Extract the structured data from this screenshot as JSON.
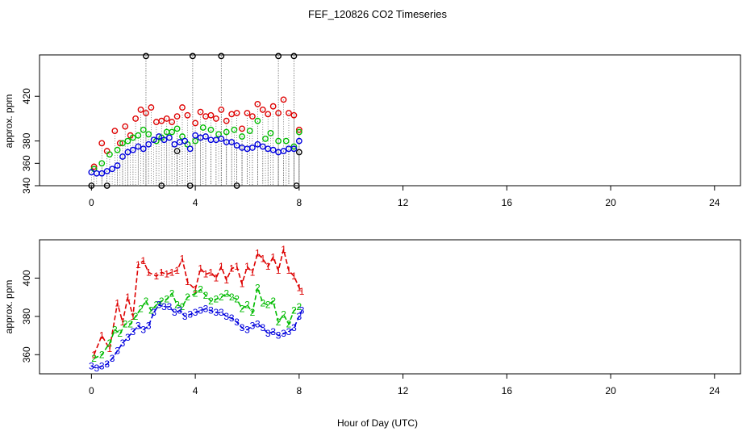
{
  "title": "FEF_120826  CO2 Timeseries",
  "xlabel": "Hour of Day (UTC)",
  "chart_data": [
    {
      "type": "scatter",
      "ylabel": "approx. ppm",
      "xlim": [
        -2,
        25
      ],
      "ylim": [
        340,
        457
      ],
      "xticks": [
        "0",
        "4",
        "8",
        "12",
        "16",
        "20",
        "24"
      ],
      "yticks": [
        "340",
        "360",
        "380",
        "420"
      ],
      "grid": false,
      "series": [
        {
          "color": "#000000",
          "x": [
            0.0,
            0.6,
            2.1,
            2.7,
            3.3,
            3.8,
            3.9,
            5.0,
            5.6,
            7.2,
            7.8,
            7.9,
            8.0
          ],
          "y": [
            340,
            340,
            456,
            340,
            371,
            340,
            456,
            456,
            340,
            456,
            456,
            340,
            370
          ]
        },
        {
          "color": "#DD0000",
          "x": [
            0.1,
            0.4,
            0.6,
            0.9,
            1.1,
            1.3,
            1.5,
            1.7,
            1.9,
            2.1,
            2.3,
            2.5,
            2.7,
            2.9,
            3.1,
            3.3,
            3.5,
            3.7,
            4.0,
            4.2,
            4.4,
            4.6,
            4.8,
            5.0,
            5.2,
            5.4,
            5.6,
            5.8,
            6.0,
            6.2,
            6.4,
            6.6,
            6.8,
            7.0,
            7.2,
            7.4,
            7.6,
            7.8,
            8.0
          ],
          "y": [
            357,
            378,
            371,
            389,
            378,
            393,
            385,
            400,
            408,
            405,
            410,
            397,
            398,
            400,
            397,
            402,
            410,
            403,
            396,
            406,
            402,
            403,
            400,
            408,
            398,
            404,
            405,
            391,
            405,
            402,
            413,
            408,
            404,
            411,
            405,
            417,
            405,
            403,
            390
          ]
        },
        {
          "color": "#00BB00",
          "x": [
            0.1,
            0.4,
            0.7,
            1.0,
            1.2,
            1.4,
            1.6,
            1.8,
            2.0,
            2.2,
            2.5,
            2.7,
            2.9,
            3.1,
            3.3,
            3.5,
            3.7,
            4.0,
            4.3,
            4.6,
            4.9,
            5.2,
            5.5,
            5.8,
            6.1,
            6.4,
            6.7,
            6.9,
            7.2,
            7.5,
            7.8,
            8.0
          ],
          "y": [
            355,
            360,
            368,
            372,
            378,
            380,
            383,
            385,
            390,
            386,
            380,
            383,
            388,
            388,
            391,
            384,
            377,
            380,
            392,
            390,
            386,
            388,
            390,
            384,
            389,
            398,
            382,
            387,
            380,
            380,
            375,
            388
          ]
        },
        {
          "color": "#0000DD",
          "x": [
            0.0,
            0.2,
            0.4,
            0.6,
            0.8,
            1.0,
            1.2,
            1.4,
            1.6,
            1.8,
            2.0,
            2.2,
            2.4,
            2.6,
            2.8,
            3.0,
            3.2,
            3.4,
            3.6,
            3.8,
            4.0,
            4.2,
            4.4,
            4.6,
            4.8,
            5.0,
            5.2,
            5.4,
            5.6,
            5.8,
            6.0,
            6.2,
            6.4,
            6.6,
            6.8,
            7.0,
            7.2,
            7.4,
            7.6,
            7.8,
            8.0
          ],
          "y": [
            352,
            351,
            351,
            353,
            355,
            358,
            366,
            370,
            372,
            375,
            373,
            377,
            381,
            384,
            381,
            383,
            377,
            379,
            380,
            373,
            385,
            383,
            384,
            381,
            381,
            382,
            379,
            379,
            376,
            374,
            373,
            374,
            377,
            375,
            373,
            372,
            370,
            371,
            373,
            373,
            380
          ]
        }
      ]
    },
    {
      "type": "line",
      "ylabel": "approx. ppm",
      "xlim": [
        -2,
        25
      ],
      "ylim": [
        350,
        420
      ],
      "xticks": [
        "0",
        "4",
        "8",
        "12",
        "16",
        "20",
        "24"
      ],
      "yticks": [
        "360",
        "380",
        "400"
      ],
      "grid": false,
      "series": [
        {
          "marker": "1",
          "color": "#DD0000",
          "x": [
            0.1,
            0.4,
            0.7,
            1.0,
            1.2,
            1.4,
            1.6,
            1.8,
            2.0,
            2.2,
            2.5,
            2.7,
            2.9,
            3.1,
            3.3,
            3.5,
            3.7,
            4.0,
            4.2,
            4.4,
            4.6,
            4.8,
            5.0,
            5.2,
            5.4,
            5.6,
            5.8,
            6.0,
            6.2,
            6.4,
            6.6,
            6.8,
            7.0,
            7.2,
            7.4,
            7.6,
            7.8,
            8.0,
            8.1
          ],
          "y": [
            360,
            370,
            363,
            387,
            377,
            390,
            380,
            407,
            409,
            403,
            401,
            403,
            402,
            403,
            404,
            410,
            398,
            394,
            405,
            402,
            403,
            400,
            406,
            399,
            405,
            406,
            397,
            406,
            403,
            413,
            410,
            406,
            411,
            404,
            415,
            404,
            401,
            395,
            393
          ]
        },
        {
          "marker": "2",
          "color": "#00BB00",
          "x": [
            0.1,
            0.4,
            0.7,
            0.9,
            1.1,
            1.3,
            1.5,
            1.7,
            1.9,
            2.1,
            2.3,
            2.5,
            2.7,
            2.9,
            3.1,
            3.3,
            3.5,
            3.7,
            4.0,
            4.2,
            4.4,
            4.6,
            4.8,
            5.0,
            5.2,
            5.4,
            5.6,
            5.8,
            6.0,
            6.2,
            6.4,
            6.6,
            6.8,
            7.0,
            7.2,
            7.4,
            7.6,
            7.8,
            8.0
          ],
          "y": [
            358,
            360,
            366,
            373,
            371,
            376,
            376,
            380,
            384,
            388,
            383,
            386,
            388,
            389,
            392,
            386,
            385,
            390,
            392,
            394,
            391,
            388,
            389,
            390,
            392,
            390,
            389,
            384,
            386,
            382,
            395,
            387,
            386,
            388,
            377,
            381,
            376,
            383,
            385
          ]
        },
        {
          "marker": "3",
          "color": "#0000DD",
          "x": [
            0.0,
            0.2,
            0.4,
            0.6,
            0.8,
            1.0,
            1.2,
            1.4,
            1.6,
            1.8,
            2.0,
            2.2,
            2.4,
            2.6,
            2.8,
            3.0,
            3.2,
            3.4,
            3.6,
            3.8,
            4.0,
            4.2,
            4.4,
            4.6,
            4.8,
            5.0,
            5.2,
            5.4,
            5.6,
            5.8,
            6.0,
            6.2,
            6.4,
            6.6,
            6.8,
            7.0,
            7.2,
            7.4,
            7.6,
            7.8,
            8.0,
            8.1
          ],
          "y": [
            354,
            353,
            354,
            355,
            358,
            362,
            366,
            369,
            372,
            375,
            373,
            375,
            382,
            386,
            385,
            385,
            382,
            383,
            380,
            381,
            382,
            383,
            384,
            383,
            382,
            382,
            380,
            379,
            377,
            374,
            373,
            375,
            376,
            374,
            371,
            372,
            370,
            371,
            372,
            374,
            380,
            383
          ]
        }
      ]
    }
  ]
}
